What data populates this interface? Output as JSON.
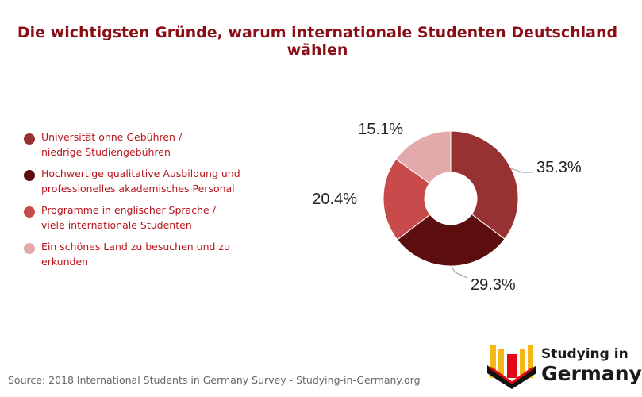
{
  "title": "Die wichtigsten Gründe, warum internationale Studenten Deutschland wählen",
  "source": "Source: 2018 International Students in Germany Survey - Studying-in-Germany.org",
  "logo": {
    "line1": "Studying in",
    "line2": "Germany"
  },
  "legend": [
    {
      "lines": [
        "Universität ohne Gebühren /",
        "niedrige Studiengebühren"
      ],
      "color": "#983232"
    },
    {
      "lines": [
        "Hochwertige qualitative Ausbildung und",
        "professionelles akademisches Personal"
      ],
      "color": "#5c0d0d"
    },
    {
      "lines": [
        "Programme in englischer Sprache /",
        "viele internationale Studenten"
      ],
      "color": "#c94a4a"
    },
    {
      "lines": [
        "Ein schönes Land zu besuchen und zu",
        "erkunden"
      ],
      "color": "#e2aaaa"
    }
  ],
  "chart_data": {
    "type": "pie",
    "donut": true,
    "categories": [
      "Universität ohne Gebühren / niedrige Studiengebühren",
      "Hochwertige qualitative Ausbildung und professionelles akademisches Personal",
      "Programme in englischer Sprache / viele internationale Studenten",
      "Ein schönes Land zu besuchen und zu erkunden"
    ],
    "values": [
      35.3,
      29.3,
      20.4,
      15.1
    ],
    "labels": [
      "35.3%",
      "29.3%",
      "20.4%",
      "15.1%"
    ],
    "colors": [
      "#983232",
      "#5c0d0d",
      "#c94a4a",
      "#e2aaaa"
    ],
    "legend_position": "left"
  }
}
